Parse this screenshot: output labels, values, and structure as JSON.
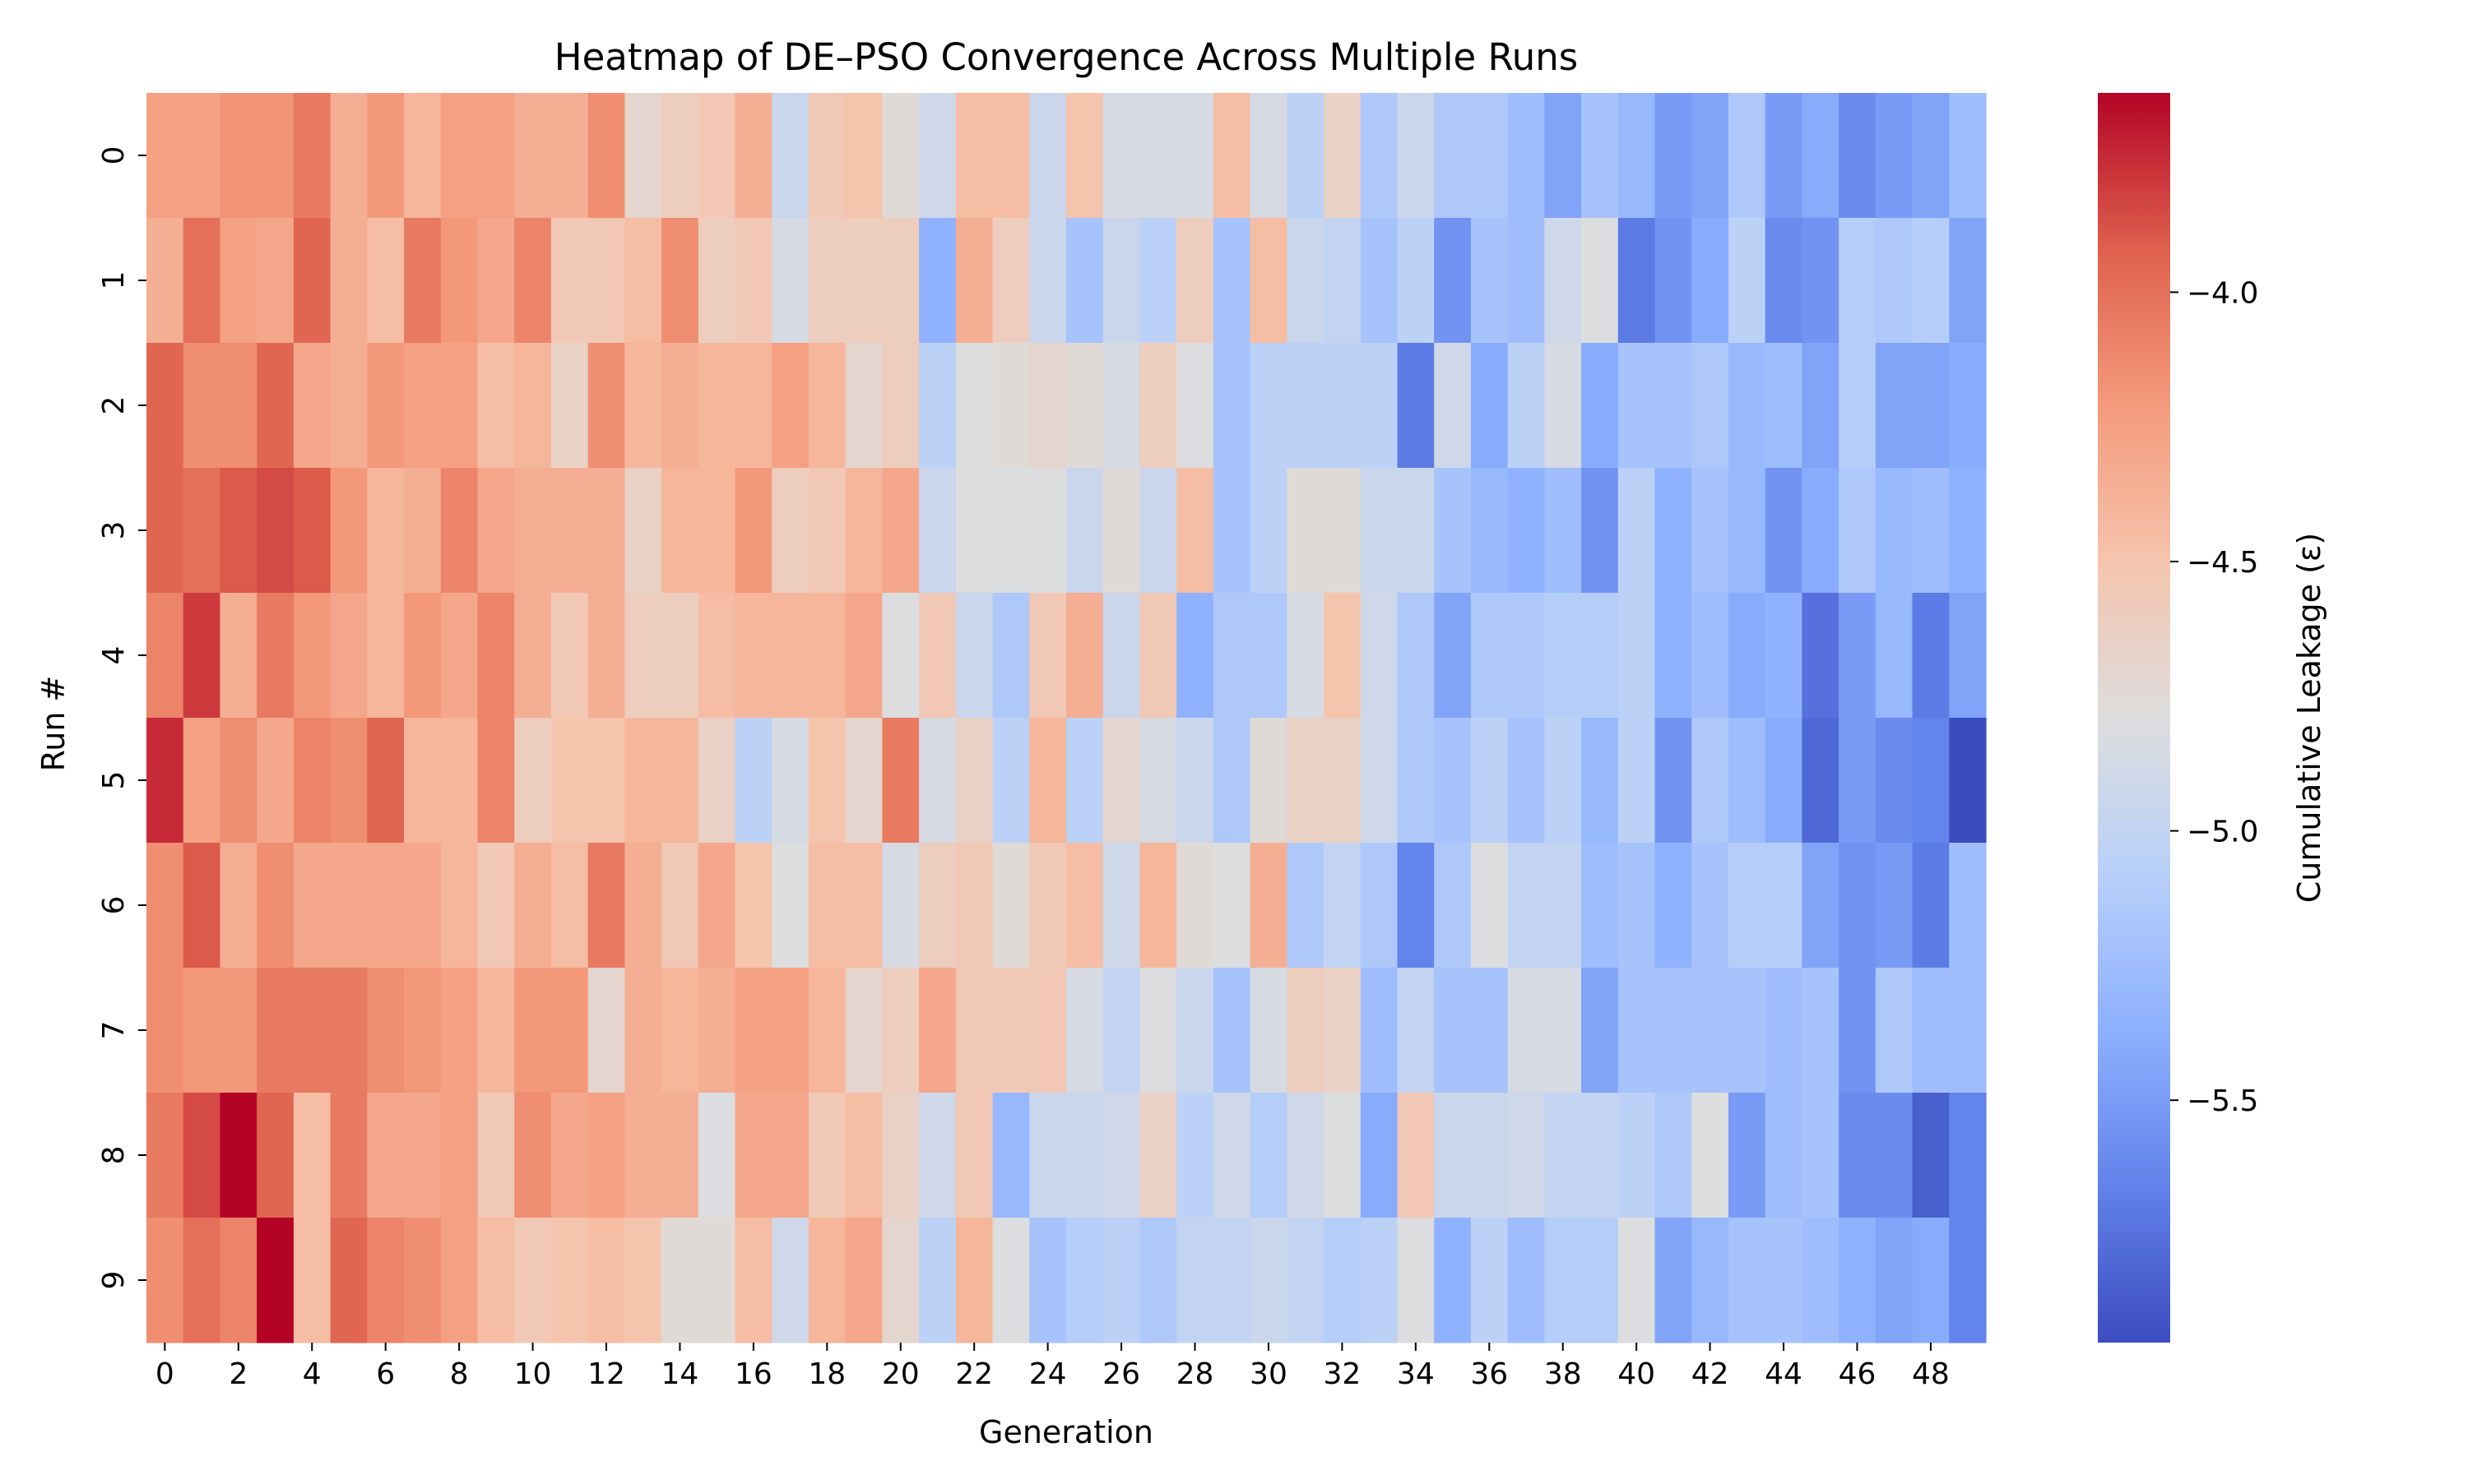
{
  "chart_data": {
    "type": "heatmap",
    "title": "Heatmap of DE–PSO Convergence Across Multiple Runs",
    "xlabel": "Generation",
    "ylabel": "Run #",
    "x_tick_labels": [
      "0",
      "2",
      "4",
      "6",
      "8",
      "10",
      "12",
      "14",
      "16",
      "18",
      "20",
      "22",
      "24",
      "26",
      "28",
      "30",
      "32",
      "34",
      "36",
      "38",
      "40",
      "42",
      "44",
      "46",
      "48"
    ],
    "y_tick_labels": [
      "0",
      "1",
      "2",
      "3",
      "4",
      "5",
      "6",
      "7",
      "8",
      "9"
    ],
    "colorbar": {
      "label": "Cumulative Leakage (ε)",
      "tick_values": [
        -4.0,
        -4.5,
        -5.0,
        -5.5
      ],
      "tick_labels": [
        "−4.0",
        "−4.5",
        "−5.0",
        "−5.5"
      ],
      "vmin": -5.95,
      "vmax": -3.63,
      "colormap": "coolwarm"
    },
    "columns": 50,
    "rows": 10,
    "values": [
      [
        -4.25,
        -4.25,
        -4.18,
        -4.18,
        -4.05,
        -4.35,
        -4.2,
        -4.4,
        -4.25,
        -4.25,
        -4.35,
        -4.35,
        -4.15,
        -4.7,
        -4.6,
        -4.55,
        -4.35,
        -4.95,
        -4.55,
        -4.5,
        -4.75,
        -4.9,
        -4.45,
        -4.45,
        -4.95,
        -4.5,
        -4.85,
        -4.85,
        -4.85,
        -4.45,
        -4.85,
        -5.05,
        -4.65,
        -5.15,
        -4.95,
        -5.15,
        -5.15,
        -5.25,
        -5.45,
        -5.2,
        -5.3,
        -5.5,
        -5.45,
        -5.15,
        -5.5,
        -5.4,
        -5.6,
        -5.5,
        -5.45,
        -5.25
      ],
      [
        -4.35,
        -4.0,
        -4.25,
        -4.3,
        -3.95,
        -4.35,
        -4.45,
        -4.05,
        -4.2,
        -4.3,
        -4.1,
        -4.55,
        -4.55,
        -4.45,
        -4.15,
        -4.6,
        -4.55,
        -4.85,
        -4.6,
        -4.6,
        -4.6,
        -5.35,
        -4.35,
        -4.6,
        -4.95,
        -5.2,
        -4.95,
        -5.05,
        -4.6,
        -5.2,
        -4.45,
        -4.95,
        -5.0,
        -5.2,
        -5.05,
        -5.55,
        -5.2,
        -5.25,
        -4.9,
        -4.8,
        -5.7,
        -5.55,
        -5.4,
        -5.05,
        -5.6,
        -5.55,
        -5.1,
        -5.15,
        -5.1,
        -5.45
      ],
      [
        -3.95,
        -4.15,
        -4.15,
        -3.95,
        -4.3,
        -4.35,
        -4.2,
        -4.25,
        -4.25,
        -4.45,
        -4.4,
        -4.65,
        -4.15,
        -4.4,
        -4.35,
        -4.4,
        -4.4,
        -4.25,
        -4.4,
        -4.7,
        -4.6,
        -5.05,
        -4.8,
        -4.75,
        -4.7,
        -4.75,
        -4.85,
        -4.6,
        -4.8,
        -5.2,
        -5.05,
        -5.05,
        -5.05,
        -5.05,
        -5.7,
        -4.9,
        -5.4,
        -5.05,
        -4.85,
        -5.4,
        -5.2,
        -5.2,
        -5.15,
        -5.3,
        -5.25,
        -5.45,
        -5.1,
        -5.45,
        -5.45,
        -5.4
      ],
      [
        -3.95,
        -4.0,
        -3.9,
        -3.85,
        -3.9,
        -4.2,
        -4.4,
        -4.35,
        -4.1,
        -4.3,
        -4.35,
        -4.35,
        -4.35,
        -4.65,
        -4.4,
        -4.4,
        -4.2,
        -4.6,
        -4.55,
        -4.4,
        -4.3,
        -4.95,
        -4.8,
        -4.8,
        -4.8,
        -4.95,
        -4.75,
        -4.95,
        -4.45,
        -5.2,
        -5.05,
        -4.75,
        -4.75,
        -4.95,
        -4.95,
        -5.2,
        -5.3,
        -5.35,
        -5.25,
        -5.55,
        -5.05,
        -5.35,
        -5.2,
        -5.3,
        -5.55,
        -5.4,
        -5.15,
        -5.3,
        -5.25,
        -5.35
      ],
      [
        -4.1,
        -3.8,
        -4.35,
        -4.05,
        -4.2,
        -4.3,
        -4.4,
        -4.2,
        -4.3,
        -4.1,
        -4.35,
        -4.55,
        -4.35,
        -4.6,
        -4.6,
        -4.45,
        -4.4,
        -4.4,
        -4.4,
        -4.3,
        -4.8,
        -4.55,
        -4.95,
        -5.15,
        -4.55,
        -4.35,
        -4.95,
        -4.55,
        -5.35,
        -5.15,
        -5.15,
        -4.85,
        -4.5,
        -4.9,
        -5.15,
        -5.45,
        -5.15,
        -5.15,
        -5.1,
        -5.1,
        -5.05,
        -5.35,
        -5.25,
        -5.4,
        -5.35,
        -5.75,
        -5.5,
        -5.3,
        -5.7,
        -5.45
      ],
      [
        -3.75,
        -4.25,
        -4.15,
        -4.3,
        -4.1,
        -4.15,
        -3.95,
        -4.4,
        -4.4,
        -4.1,
        -4.6,
        -4.5,
        -4.5,
        -4.4,
        -4.4,
        -4.65,
        -5.05,
        -4.85,
        -4.5,
        -4.7,
        -4.05,
        -4.85,
        -4.65,
        -5.05,
        -4.4,
        -5.05,
        -4.7,
        -4.85,
        -4.95,
        -5.15,
        -4.75,
        -4.65,
        -4.65,
        -4.9,
        -5.15,
        -5.2,
        -5.05,
        -5.2,
        -5.05,
        -5.3,
        -5.05,
        -5.55,
        -5.15,
        -5.25,
        -5.4,
        -5.8,
        -5.5,
        -5.6,
        -5.65,
        -5.95
      ],
      [
        -4.15,
        -3.9,
        -4.35,
        -4.15,
        -4.3,
        -4.3,
        -4.3,
        -4.3,
        -4.4,
        -4.55,
        -4.35,
        -4.45,
        -4.05,
        -4.35,
        -4.55,
        -4.3,
        -4.5,
        -4.8,
        -4.45,
        -4.45,
        -4.85,
        -4.6,
        -4.55,
        -4.75,
        -4.55,
        -4.45,
        -4.9,
        -4.4,
        -4.75,
        -4.8,
        -4.35,
        -5.15,
        -5.0,
        -5.15,
        -5.65,
        -5.15,
        -4.8,
        -5.0,
        -5.0,
        -5.25,
        -5.2,
        -5.35,
        -5.2,
        -5.1,
        -5.1,
        -5.45,
        -5.55,
        -5.5,
        -5.7,
        -5.25
      ],
      [
        -4.15,
        -4.2,
        -4.2,
        -4.05,
        -4.05,
        -4.05,
        -4.15,
        -4.2,
        -4.25,
        -4.4,
        -4.2,
        -4.2,
        -4.7,
        -4.35,
        -4.4,
        -4.35,
        -4.25,
        -4.25,
        -4.4,
        -4.7,
        -4.6,
        -4.3,
        -4.55,
        -4.55,
        -4.55,
        -4.85,
        -5.0,
        -4.8,
        -4.95,
        -5.2,
        -4.85,
        -4.6,
        -4.65,
        -5.25,
        -5.0,
        -5.2,
        -5.2,
        -4.85,
        -4.85,
        -5.45,
        -5.2,
        -5.2,
        -5.2,
        -5.2,
        -5.25,
        -5.2,
        -5.55,
        -5.15,
        -5.25,
        -5.25
      ],
      [
        -4.05,
        -3.85,
        -3.63,
        -3.95,
        -4.45,
        -4.05,
        -4.3,
        -4.3,
        -4.25,
        -4.55,
        -4.15,
        -4.3,
        -4.25,
        -4.35,
        -4.35,
        -4.8,
        -4.3,
        -4.3,
        -4.55,
        -4.45,
        -4.65,
        -4.9,
        -4.55,
        -5.3,
        -4.95,
        -4.95,
        -4.9,
        -4.65,
        -5.05,
        -4.9,
        -5.1,
        -4.9,
        -4.8,
        -5.4,
        -4.55,
        -4.95,
        -4.95,
        -4.9,
        -5.0,
        -5.0,
        -5.05,
        -5.15,
        -4.8,
        -5.5,
        -5.25,
        -5.2,
        -5.6,
        -5.6,
        -5.85,
        -5.65
      ],
      [
        -4.15,
        -4.0,
        -4.1,
        -3.63,
        -4.45,
        -3.95,
        -4.1,
        -4.15,
        -4.25,
        -4.45,
        -4.55,
        -4.5,
        -4.45,
        -4.5,
        -4.75,
        -4.75,
        -4.45,
        -4.9,
        -4.4,
        -4.3,
        -4.7,
        -5.05,
        -4.4,
        -4.8,
        -5.2,
        -5.1,
        -5.05,
        -5.15,
        -5.0,
        -5.0,
        -4.95,
        -5.0,
        -5.1,
        -5.05,
        -4.8,
        -5.35,
        -5.05,
        -5.25,
        -5.1,
        -5.1,
        -4.8,
        -5.45,
        -5.3,
        -5.2,
        -5.2,
        -5.25,
        -5.35,
        -5.45,
        -5.4,
        -5.65
      ]
    ]
  }
}
